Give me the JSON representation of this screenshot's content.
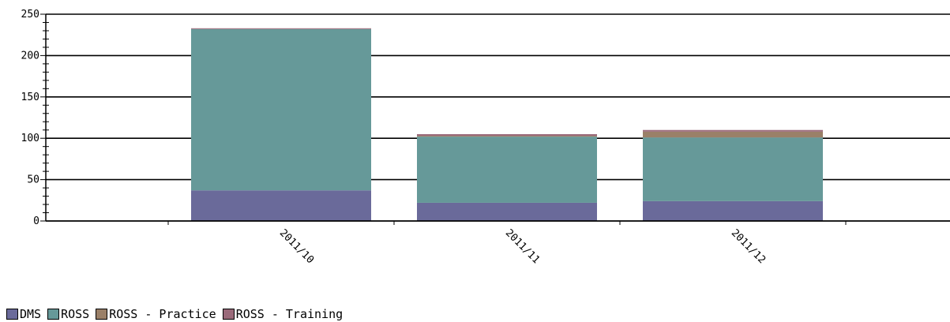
{
  "chart_data": {
    "type": "bar",
    "stacked": true,
    "categories": [
      "2011/10",
      "2011/11",
      "2011/12"
    ],
    "series": [
      {
        "name": "DMS",
        "values": [
          37,
          22,
          24
        ],
        "color": "#6a6a9a"
      },
      {
        "name": "ROSS",
        "values": [
          195,
          80,
          77
        ],
        "color": "#669999"
      },
      {
        "name": "ROSS - Practice",
        "values": [
          0,
          1,
          7
        ],
        "color": "#9a8068"
      },
      {
        "name": "ROSS - Training",
        "values": [
          1,
          2,
          2
        ],
        "color": "#9a6a7a"
      }
    ],
    "y_ticks": [
      "0",
      "50",
      "100",
      "150",
      "200",
      "250"
    ],
    "ylim": [
      0,
      250
    ],
    "grid": true,
    "legend_position": "bottom-left",
    "title": "",
    "xlabel": "",
    "ylabel": ""
  }
}
